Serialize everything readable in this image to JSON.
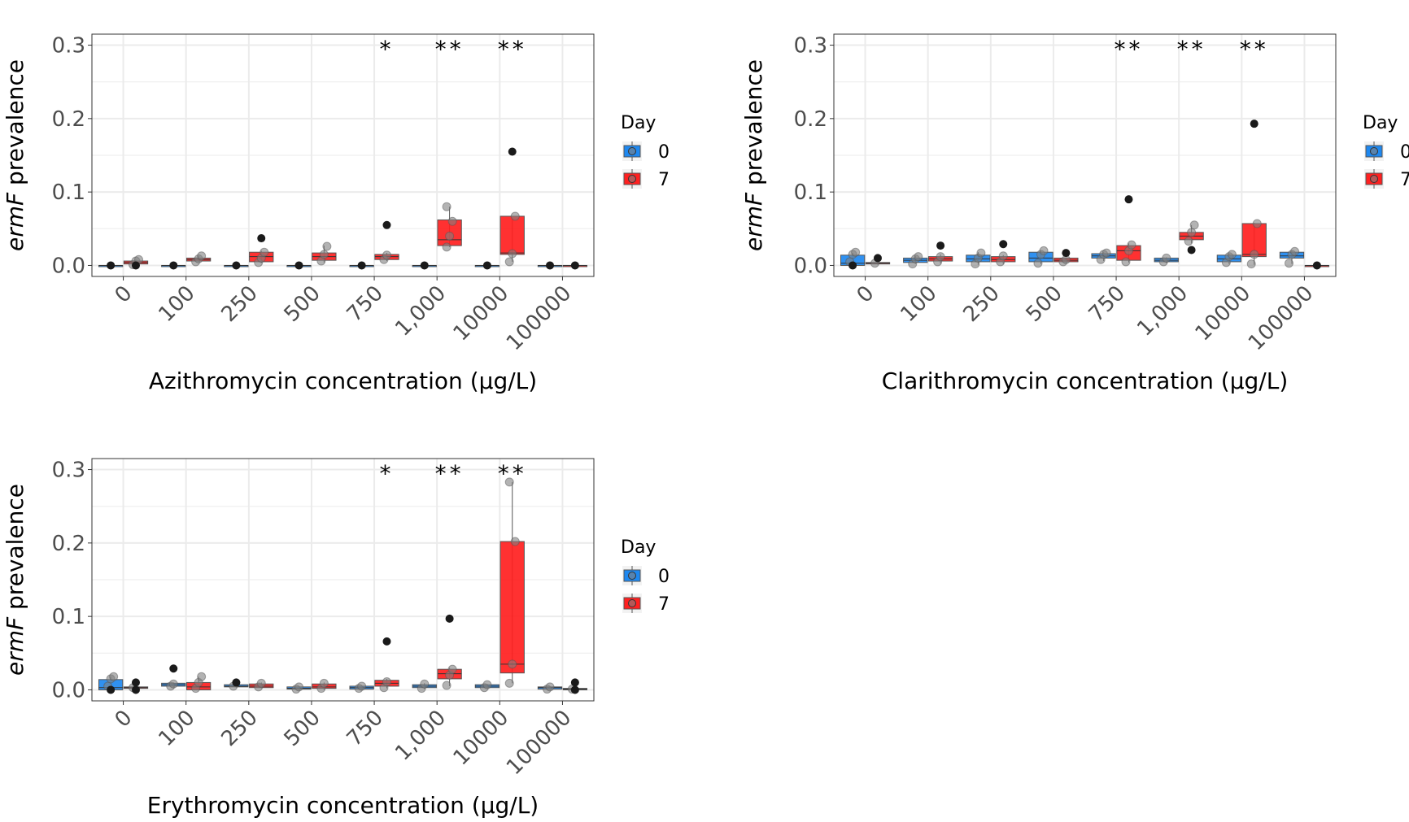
{
  "legend": {
    "title": "Day",
    "entries": [
      {
        "label": "0",
        "color": "#1E88F0"
      },
      {
        "label": "7",
        "color": "#FF2020"
      }
    ]
  },
  "colors": {
    "day0": "#1E88F0",
    "day7": "#FF2020",
    "grid": "#ebebeb",
    "axis": "#333333",
    "outlier": "#1a1a1a",
    "point": "#808080"
  },
  "chart_data": [
    {
      "panel": "a",
      "type": "box",
      "title": "",
      "gene_italic": "ermF",
      "ylabel_rest": " prevalence",
      "xlabel": "Azithromycin concentration (μg/L)",
      "categories": [
        "0",
        "100",
        "250",
        "500",
        "750",
        "1,000",
        "10000",
        "100000"
      ],
      "ylim": [
        -0.015,
        0.315
      ],
      "yticks": [
        "0.0",
        "0.1",
        "0.2",
        "0.3"
      ],
      "ytick_values": [
        0,
        0.1,
        0.2,
        0.3
      ],
      "significance": [
        "",
        "",
        "",
        "",
        "*",
        "**",
        "**",
        ""
      ],
      "series": [
        {
          "name": "0",
          "boxes": [
            {
              "q1": 0,
              "med": 0,
              "q3": 0,
              "wlo": 0,
              "whi": 0,
              "points": [],
              "outliers": [
                0
              ]
            },
            {
              "q1": 0,
              "med": 0,
              "q3": 0,
              "wlo": 0,
              "whi": 0,
              "points": [],
              "outliers": [
                0
              ]
            },
            {
              "q1": 0,
              "med": 0,
              "q3": 0,
              "wlo": 0,
              "whi": 0,
              "points": [],
              "outliers": [
                0
              ]
            },
            {
              "q1": 0,
              "med": 0,
              "q3": 0,
              "wlo": 0,
              "whi": 0,
              "points": [],
              "outliers": [
                0
              ]
            },
            {
              "q1": 0,
              "med": 0,
              "q3": 0,
              "wlo": 0,
              "whi": 0,
              "points": [],
              "outliers": [
                0
              ]
            },
            {
              "q1": 0,
              "med": 0,
              "q3": 0,
              "wlo": 0,
              "whi": 0,
              "points": [],
              "outliers": [
                0
              ]
            },
            {
              "q1": 0,
              "med": 0,
              "q3": 0,
              "wlo": 0,
              "whi": 0,
              "points": [],
              "outliers": [
                0
              ]
            },
            {
              "q1": 0,
              "med": 0,
              "q3": 0,
              "wlo": 0,
              "whi": 0,
              "points": [],
              "outliers": [
                0
              ]
            }
          ]
        },
        {
          "name": "7",
          "boxes": [
            {
              "q1": 0.002,
              "med": 0.004,
              "q3": 0.006,
              "wlo": 0,
              "whi": 0.008,
              "points": [
                0.001,
                0.006,
                0.008
              ],
              "outliers": [
                0
              ]
            },
            {
              "q1": 0.006,
              "med": 0.008,
              "q3": 0.01,
              "wlo": 0.005,
              "whi": 0.013,
              "points": [
                0.005,
                0.009,
                0.013
              ],
              "outliers": []
            },
            {
              "q1": 0.005,
              "med": 0.012,
              "q3": 0.018,
              "wlo": 0.003,
              "whi": 0.02,
              "points": [
                0.004,
                0.01,
                0.018
              ],
              "outliers": [
                0.037
              ]
            },
            {
              "q1": 0.007,
              "med": 0.012,
              "q3": 0.017,
              "wlo": 0.004,
              "whi": 0.027,
              "points": [
                0.006,
                0.015,
                0.026
              ],
              "outliers": []
            },
            {
              "q1": 0.008,
              "med": 0.012,
              "q3": 0.015,
              "wlo": 0.006,
              "whi": 0.017,
              "points": [
                0.008,
                0.014
              ],
              "outliers": [
                0.055
              ]
            },
            {
              "q1": 0.027,
              "med": 0.035,
              "q3": 0.062,
              "wlo": 0.025,
              "whi": 0.08,
              "points": [
                0.025,
                0.04,
                0.06,
                0.08
              ],
              "outliers": []
            },
            {
              "q1": 0.015,
              "med": 0.017,
              "q3": 0.067,
              "wlo": 0.005,
              "whi": 0.067,
              "points": [
                0.005,
                0.016,
                0.067
              ],
              "outliers": [
                0.155
              ]
            },
            {
              "q1": 0,
              "med": 0,
              "q3": 0,
              "wlo": 0,
              "whi": 0,
              "points": [],
              "outliers": [
                0
              ]
            }
          ]
        }
      ]
    },
    {
      "panel": "b",
      "type": "box",
      "title": "",
      "gene_italic": "ermF",
      "ylabel_rest": " prevalence",
      "xlabel": "Clarithromycin concentration (μg/L)",
      "categories": [
        "0",
        "100",
        "250",
        "500",
        "750",
        "1,000",
        "10000",
        "100000"
      ],
      "ylim": [
        -0.015,
        0.315
      ],
      "yticks": [
        "0.0",
        "0.1",
        "0.2",
        "0.3"
      ],
      "ytick_values": [
        0,
        0.1,
        0.2,
        0.3
      ],
      "significance": [
        "",
        "",
        "",
        "",
        "**",
        "**",
        "**",
        ""
      ],
      "series": [
        {
          "name": "0",
          "boxes": [
            {
              "q1": 0,
              "med": 0.003,
              "q3": 0.014,
              "wlo": 0,
              "whi": 0.017,
              "points": [
                0.005,
                0.015,
                0.018
              ],
              "outliers": [
                0
              ]
            },
            {
              "q1": 0.004,
              "med": 0.007,
              "q3": 0.01,
              "wlo": 0.002,
              "whi": 0.013,
              "points": [
                0.002,
                0.009,
                0.012
              ],
              "outliers": []
            },
            {
              "q1": 0.005,
              "med": 0.009,
              "q3": 0.014,
              "wlo": 0.001,
              "whi": 0.018,
              "points": [
                0.002,
                0.01,
                0.017
              ],
              "outliers": []
            },
            {
              "q1": 0.005,
              "med": 0.01,
              "q3": 0.018,
              "wlo": 0.002,
              "whi": 0.02,
              "points": [
                0.003,
                0.015,
                0.02
              ],
              "outliers": []
            },
            {
              "q1": 0.01,
              "med": 0.013,
              "q3": 0.016,
              "wlo": 0.006,
              "whi": 0.018,
              "points": [
                0.008,
                0.015,
                0.017
              ],
              "outliers": []
            },
            {
              "q1": 0.005,
              "med": 0.007,
              "q3": 0.01,
              "wlo": 0.003,
              "whi": 0.011,
              "points": [
                0.005,
                0.01
              ],
              "outliers": []
            },
            {
              "q1": 0.005,
              "med": 0.009,
              "q3": 0.014,
              "wlo": 0.002,
              "whi": 0.016,
              "points": [
                0.004,
                0.012,
                0.015
              ],
              "outliers": []
            },
            {
              "q1": 0.01,
              "med": 0.013,
              "q3": 0.018,
              "wlo": 0.002,
              "whi": 0.02,
              "points": [
                0.003,
                0.015,
                0.019
              ],
              "outliers": []
            }
          ]
        },
        {
          "name": "7",
          "boxes": [
            {
              "q1": 0.002,
              "med": 0.003,
              "q3": 0.004,
              "wlo": 0.001,
              "whi": 0.005,
              "points": [
                0.003
              ],
              "outliers": [
                0.01
              ]
            },
            {
              "q1": 0.006,
              "med": 0.009,
              "q3": 0.012,
              "wlo": 0.003,
              "whi": 0.015,
              "points": [
                0.005,
                0.012
              ],
              "outliers": [
                0.027
              ]
            },
            {
              "q1": 0.005,
              "med": 0.008,
              "q3": 0.012,
              "wlo": 0.002,
              "whi": 0.014,
              "points": [
                0.005,
                0.013
              ],
              "outliers": [
                0.029
              ]
            },
            {
              "q1": 0.005,
              "med": 0.007,
              "q3": 0.01,
              "wlo": 0.004,
              "whi": 0.01,
              "points": [
                0.005,
                0.008
              ],
              "outliers": [
                0.017
              ]
            },
            {
              "q1": 0.007,
              "med": 0.02,
              "q3": 0.027,
              "wlo": 0.004,
              "whi": 0.03,
              "points": [
                0.005,
                0.02,
                0.028
              ],
              "outliers": [
                0.09
              ]
            },
            {
              "q1": 0.035,
              "med": 0.04,
              "q3": 0.045,
              "wlo": 0.03,
              "whi": 0.055,
              "points": [
                0.033,
                0.045,
                0.055
              ],
              "outliers": [
                0.021
              ]
            },
            {
              "q1": 0.012,
              "med": 0.015,
              "q3": 0.057,
              "wlo": 0.001,
              "whi": 0.058,
              "points": [
                0.002,
                0.015,
                0.057
              ],
              "outliers": [
                0.193
              ]
            },
            {
              "q1": 0,
              "med": 0,
              "q3": 0,
              "wlo": 0,
              "whi": 0,
              "points": [],
              "outliers": [
                0
              ]
            }
          ]
        }
      ]
    },
    {
      "panel": "c",
      "type": "box",
      "title": "",
      "gene_italic": "ermF",
      "ylabel_rest": " prevalence",
      "xlabel": "Erythromycin concentration (μg/L)",
      "categories": [
        "0",
        "100",
        "250",
        "500",
        "750",
        "1,000",
        "10000",
        "100000"
      ],
      "ylim": [
        -0.015,
        0.315
      ],
      "yticks": [
        "0.0",
        "0.1",
        "0.2",
        "0.3"
      ],
      "ytick_values": [
        0,
        0.1,
        0.2,
        0.3
      ],
      "significance": [
        "",
        "",
        "",
        "",
        "*",
        "**",
        "**",
        ""
      ],
      "series": [
        {
          "name": "0",
          "boxes": [
            {
              "q1": 0,
              "med": 0.003,
              "q3": 0.014,
              "wlo": 0,
              "whi": 0.018,
              "points": [
                0.005,
                0.015,
                0.018
              ],
              "outliers": [
                0
              ]
            },
            {
              "q1": 0.005,
              "med": 0.007,
              "q3": 0.009,
              "wlo": 0.003,
              "whi": 0.01,
              "points": [
                0.005,
                0.008
              ],
              "outliers": [
                0.029
              ]
            },
            {
              "q1": 0.004,
              "med": 0.005,
              "q3": 0.007,
              "wlo": 0.003,
              "whi": 0.008,
              "points": [
                0.005
              ],
              "outliers": [
                0.01
              ]
            },
            {
              "q1": 0.001,
              "med": 0.002,
              "q3": 0.004,
              "wlo": 0,
              "whi": 0.005,
              "points": [
                0.001,
                0.004
              ],
              "outliers": []
            },
            {
              "q1": 0.001,
              "med": 0.003,
              "q3": 0.005,
              "wlo": 0,
              "whi": 0.006,
              "points": [
                0.002,
                0.005
              ],
              "outliers": []
            },
            {
              "q1": 0.003,
              "med": 0.005,
              "q3": 0.007,
              "wlo": 0.001,
              "whi": 0.009,
              "points": [
                0.002,
                0.008
              ],
              "outliers": []
            },
            {
              "q1": 0.003,
              "med": 0.005,
              "q3": 0.007,
              "wlo": 0.002,
              "whi": 0.008,
              "points": [
                0.003,
                0.007
              ],
              "outliers": []
            },
            {
              "q1": 0.001,
              "med": 0.003,
              "q3": 0.004,
              "wlo": 0,
              "whi": 0.005,
              "points": [
                0.001,
                0.004
              ],
              "outliers": []
            }
          ]
        },
        {
          "name": "7",
          "boxes": [
            {
              "q1": 0.002,
              "med": 0.003,
              "q3": 0.004,
              "wlo": 0,
              "whi": 0.005,
              "points": [
                0.003
              ],
              "outliers": [
                0.01,
                0
              ]
            },
            {
              "q1": 0,
              "med": 0.004,
              "q3": 0.01,
              "wlo": 0,
              "whi": 0.018,
              "points": [
                0.002,
                0.01,
                0.018
              ],
              "outliers": []
            },
            {
              "q1": 0.003,
              "med": 0.005,
              "q3": 0.008,
              "wlo": 0.002,
              "whi": 0.01,
              "points": [
                0.004,
                0.009
              ],
              "outliers": []
            },
            {
              "q1": 0.002,
              "med": 0.004,
              "q3": 0.008,
              "wlo": 0,
              "whi": 0.01,
              "points": [
                0.002,
                0.009
              ],
              "outliers": []
            },
            {
              "q1": 0.005,
              "med": 0.009,
              "q3": 0.013,
              "wlo": 0.002,
              "whi": 0.015,
              "points": [
                0.003,
                0.011
              ],
              "outliers": [
                0.066
              ]
            },
            {
              "q1": 0.015,
              "med": 0.022,
              "q3": 0.028,
              "wlo": 0.005,
              "whi": 0.03,
              "points": [
                0.006,
                0.02,
                0.028
              ],
              "outliers": [
                0.097
              ]
            },
            {
              "q1": 0.023,
              "med": 0.035,
              "q3": 0.202,
              "wlo": 0.009,
              "whi": 0.283,
              "points": [
                0.009,
                0.035,
                0.202,
                0.283
              ],
              "outliers": []
            },
            {
              "q1": 0,
              "med": 0.001,
              "q3": 0.002,
              "wlo": 0,
              "whi": 0.003,
              "points": [
                0.001
              ],
              "outliers": [
                0.01,
                0
              ]
            }
          ]
        }
      ]
    }
  ]
}
